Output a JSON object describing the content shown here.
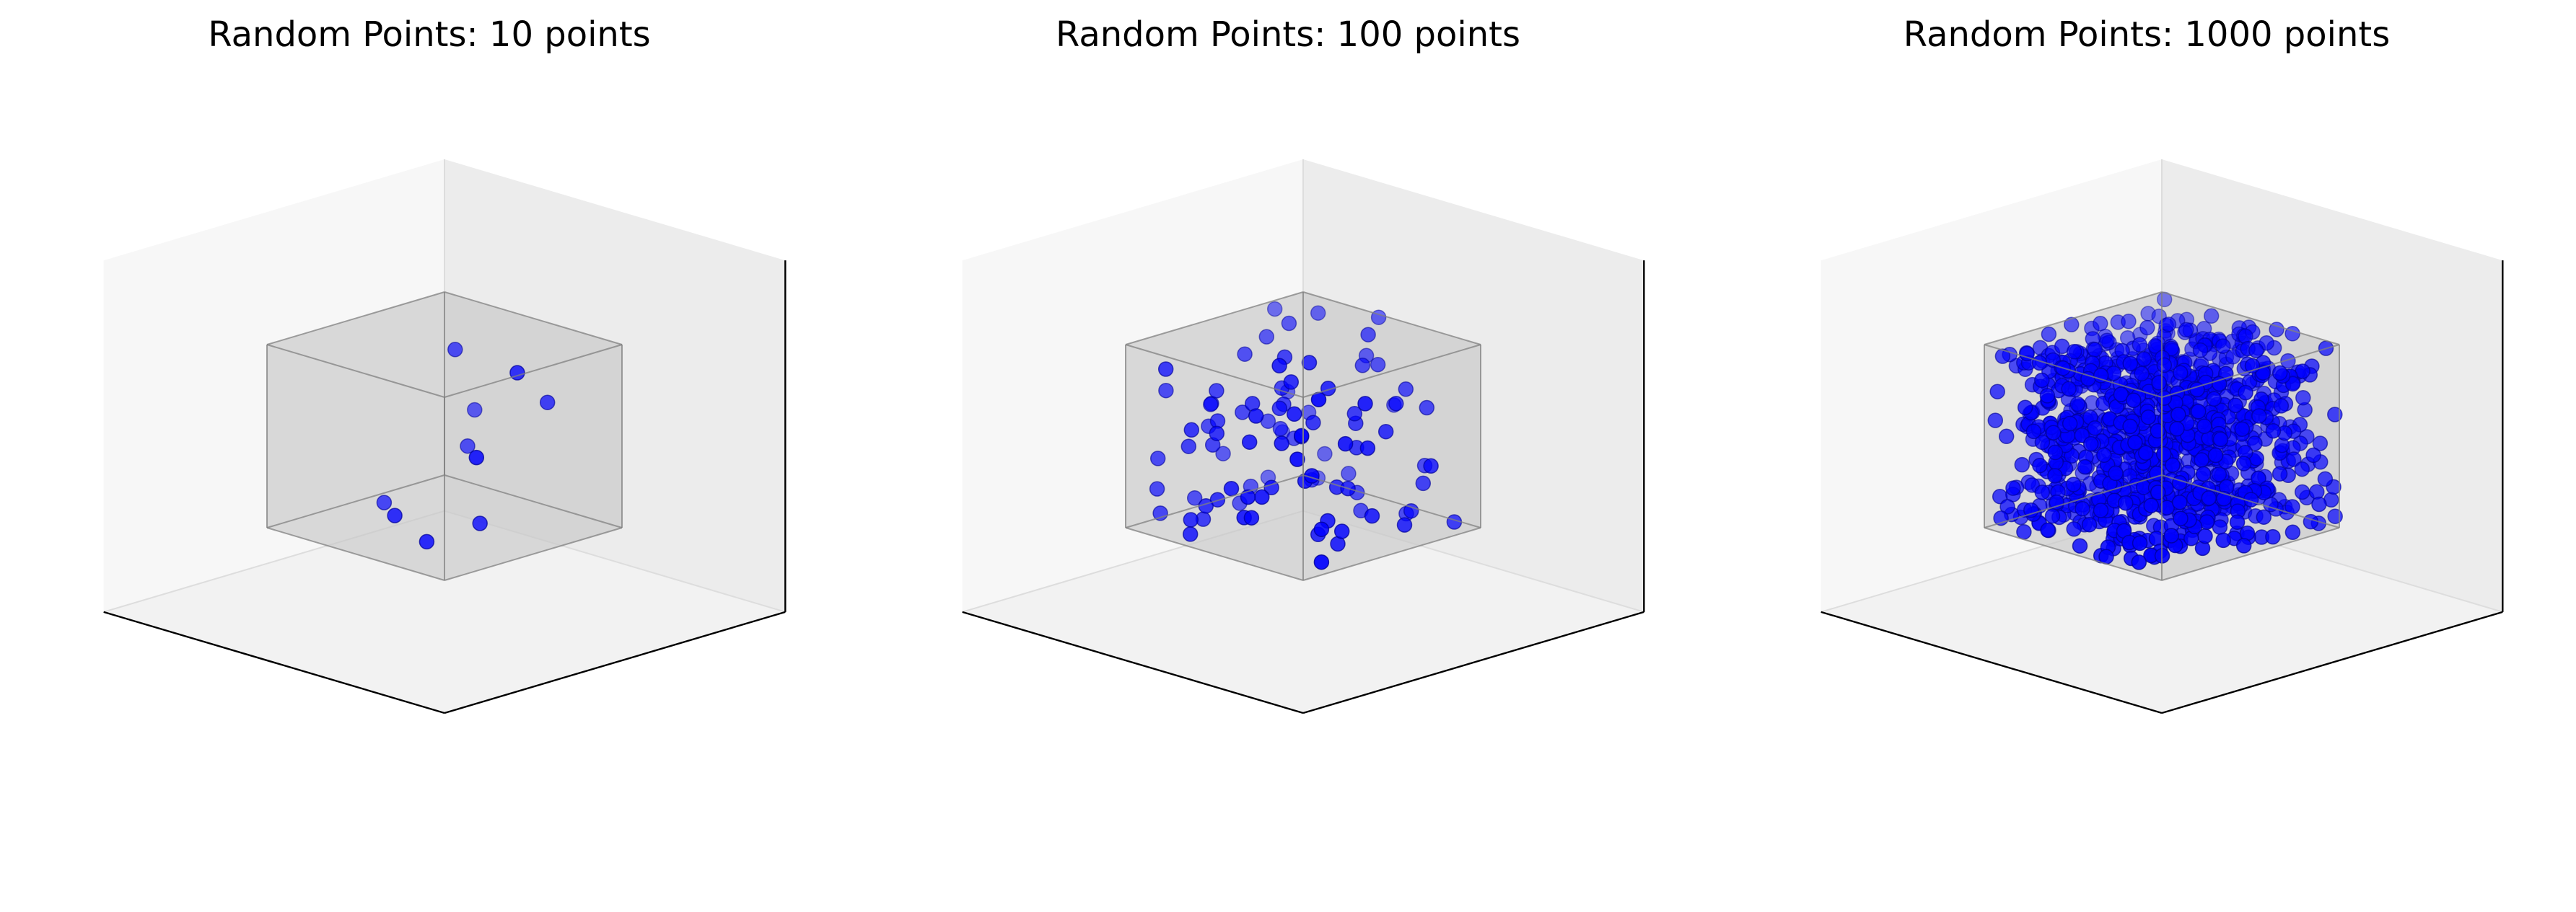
{
  "chart_data": [
    {
      "type": "scatter",
      "title": "Random Points: 10 points",
      "xlim": [
        0,
        1
      ],
      "ylim": [
        0,
        1
      ],
      "zlim": [
        0,
        1
      ],
      "axis_ticks": "off",
      "panes": "shown",
      "marker_color": "#0000ff",
      "box": {
        "x": [
          0,
          1
        ],
        "y": [
          0,
          1
        ],
        "z": [
          0,
          1
        ],
        "color": "#808080",
        "fill": "#c8c8c8"
      },
      "n_points": 10,
      "series": [
        {
          "x": [
            0.12,
            0.2,
            0.55,
            0.63,
            0.7,
            0.46,
            0.25,
            0.33,
            0.15,
            0.58
          ],
          "y": [
            0.3,
            0.78,
            0.68,
            0.8,
            0.36,
            0.18,
            0.45,
            0.23,
            0.56,
            0.64
          ],
          "z": [
            0.55,
            0.69,
            0.38,
            0.52,
            0.12,
            0.17,
            0.11,
            0.05,
            0.93,
            0.91
          ]
        }
      ]
    },
    {
      "type": "scatter",
      "title": "Random Points: 100 points",
      "xlim": [
        0,
        1
      ],
      "ylim": [
        0,
        1
      ],
      "zlim": [
        0,
        1
      ],
      "axis_ticks": "off",
      "panes": "shown",
      "marker_color": "#0000ff",
      "box": {
        "x": [
          0,
          1
        ],
        "y": [
          0,
          1
        ],
        "z": [
          0,
          1
        ],
        "color": "#808080",
        "fill": "#c8c8c8"
      },
      "n_points": 100
    },
    {
      "type": "scatter",
      "title": "Random Points: 1000 points",
      "xlim": [
        0,
        1
      ],
      "ylim": [
        0,
        1
      ],
      "zlim": [
        0,
        1
      ],
      "axis_ticks": "off",
      "panes": "shown",
      "marker_color": "#0000ff",
      "box": {
        "x": [
          0,
          1
        ],
        "y": [
          0,
          1
        ],
        "z": [
          0,
          1
        ],
        "color": "#808080",
        "fill": "#c8c8c8"
      },
      "n_points": 1000
    }
  ]
}
